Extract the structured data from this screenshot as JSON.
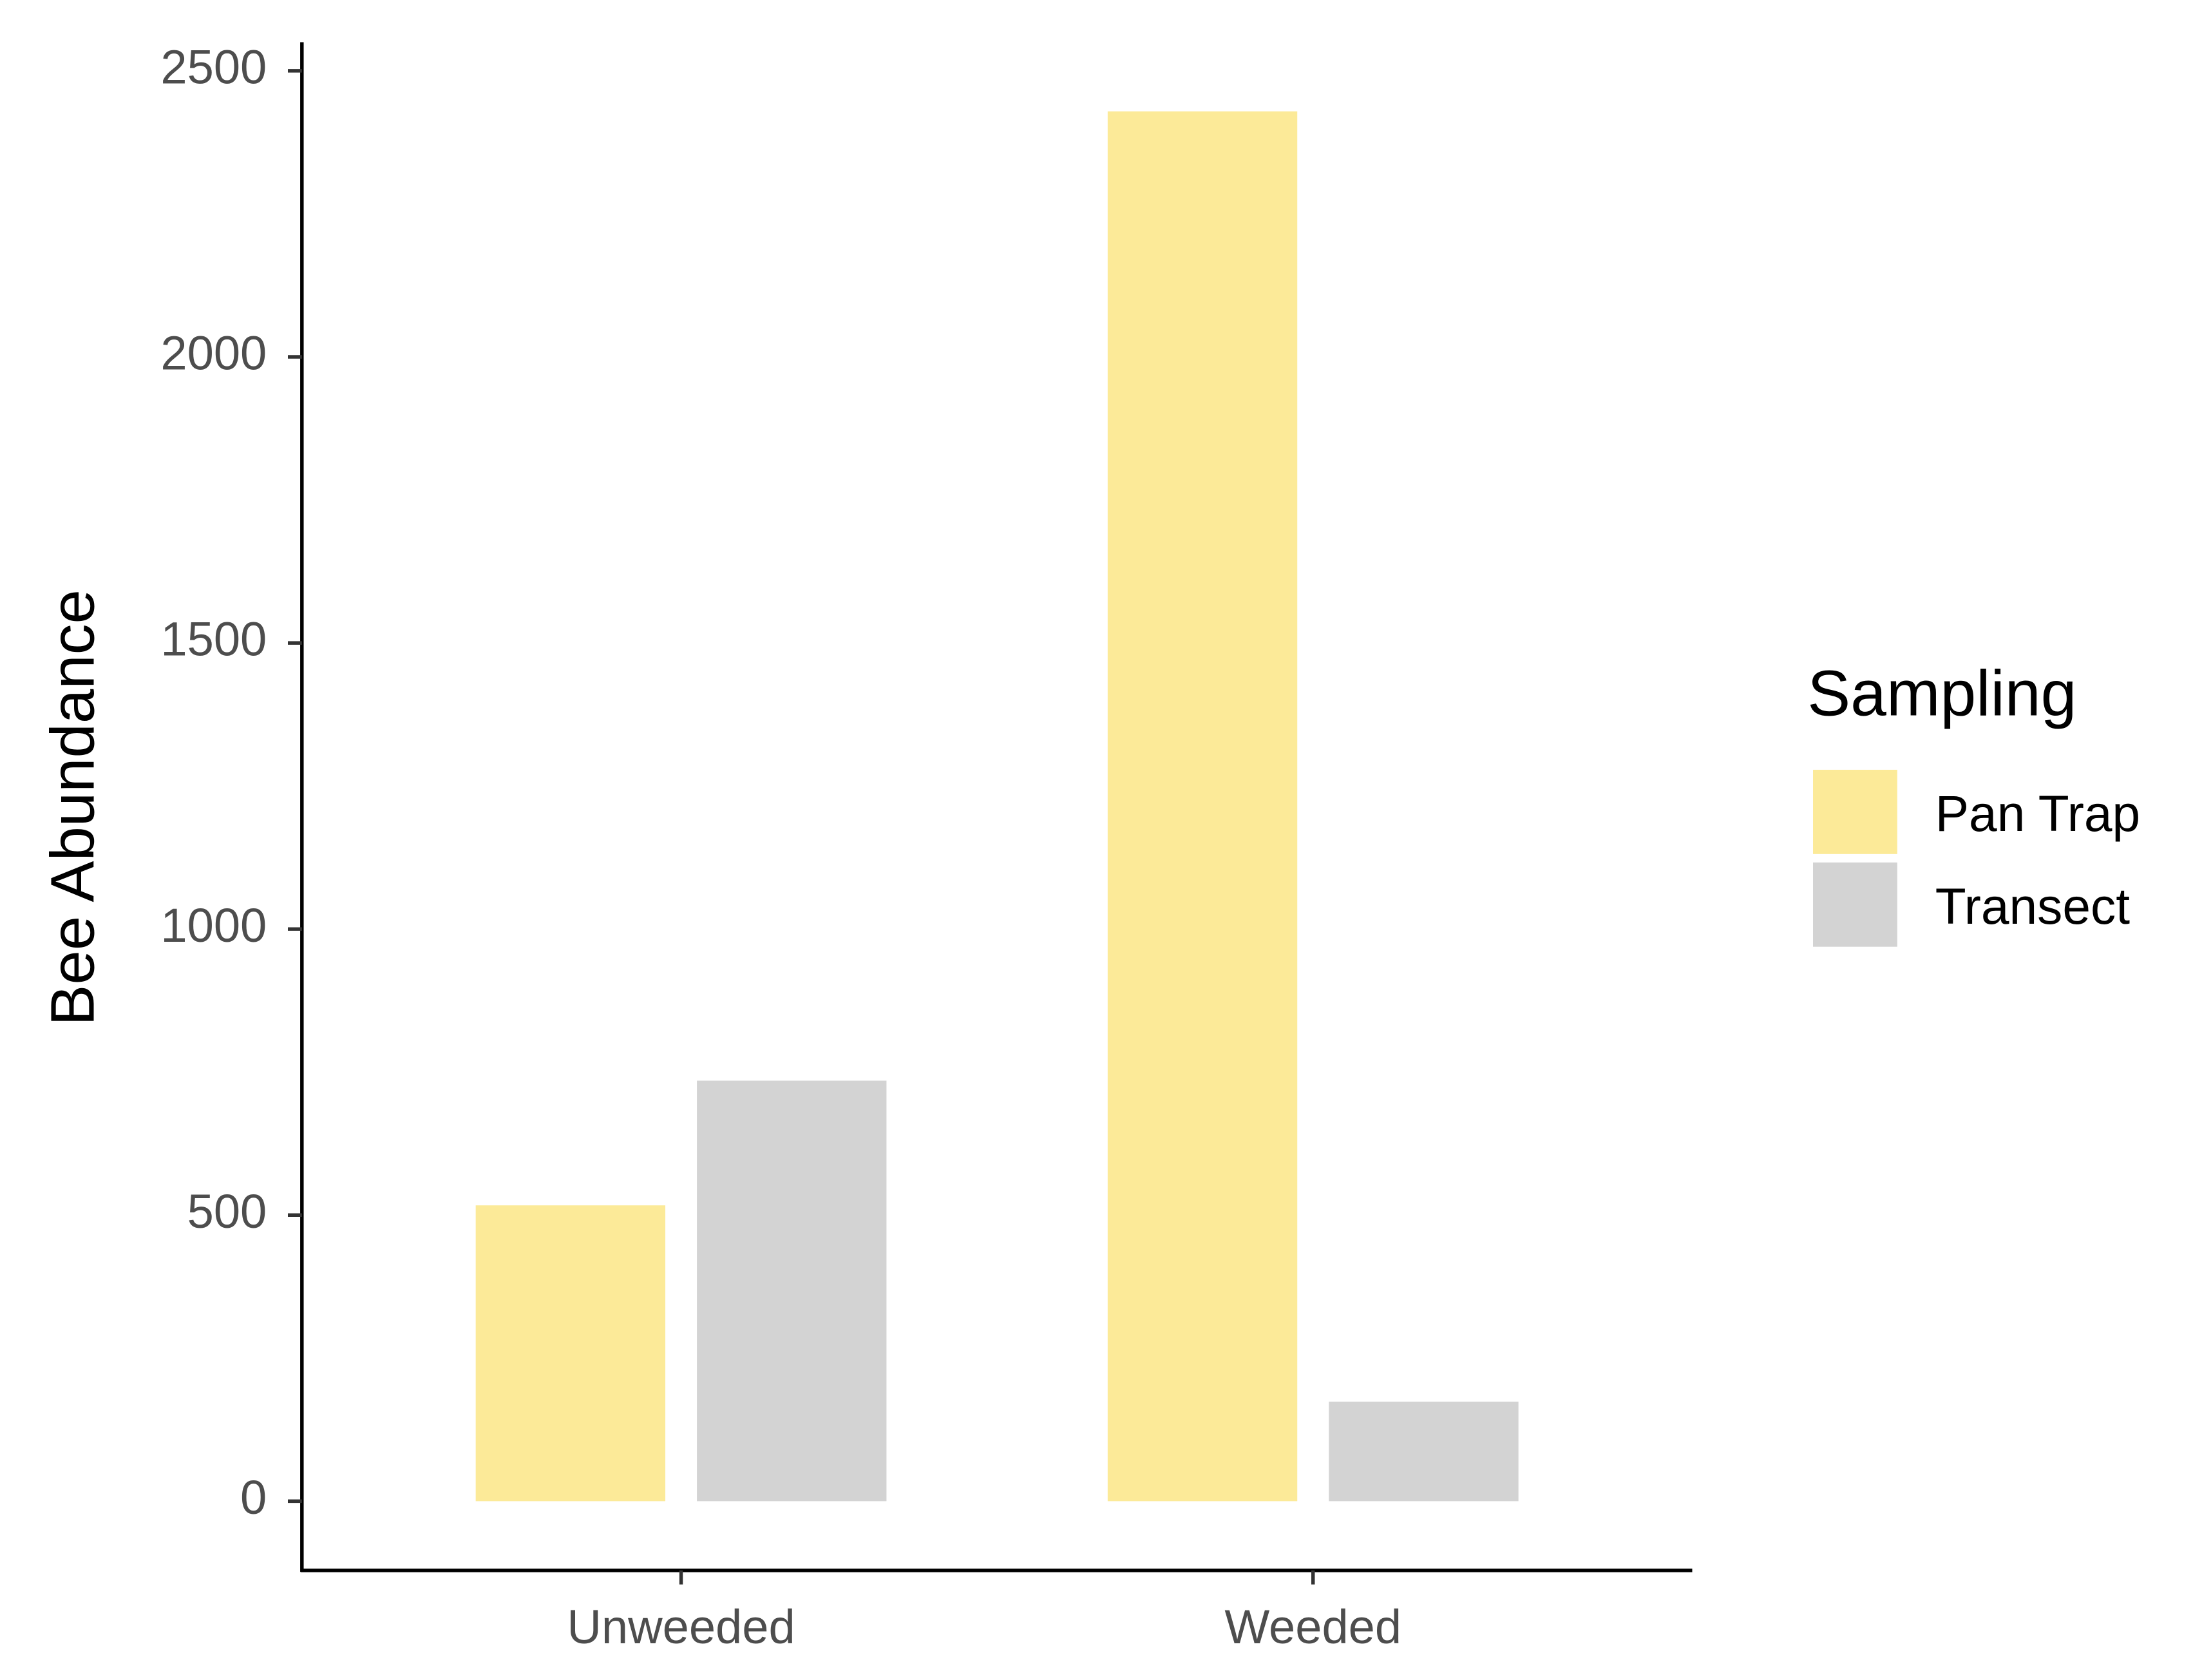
{
  "chart_data": {
    "type": "bar",
    "y_label": "Bee Abundance",
    "legend_title": "Sampling",
    "categories": [
      "Unweeded",
      "Weeded"
    ],
    "series": [
      {
        "name": "Pan Trap",
        "color": "#fcea98",
        "values": [
          517,
          2429
        ]
      },
      {
        "name": "Transect",
        "color": "#d3d3d3",
        "values": [
          735,
          174
        ]
      }
    ],
    "ylim": [
      -121,
      2550
    ],
    "yticks": [
      0,
      500,
      1000,
      1500,
      2000,
      2500
    ],
    "grid": false,
    "legend_position": "right"
  }
}
